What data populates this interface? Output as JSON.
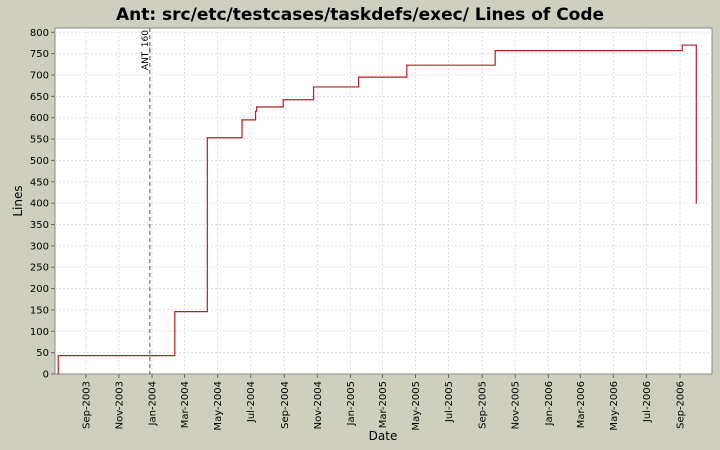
{
  "chart_data": {
    "type": "line",
    "title": "Ant: src/etc/testcases/taskdefs/exec/ Lines of Code",
    "xlabel": "Date",
    "ylabel": "Lines",
    "x_axis": "date",
    "xlim": [
      "2003-07-06",
      "2006-10-30"
    ],
    "ylim": [
      0,
      810
    ],
    "y_ticks": [
      0,
      50,
      100,
      150,
      200,
      250,
      300,
      350,
      400,
      450,
      500,
      550,
      600,
      650,
      700,
      750,
      800
    ],
    "x_ticks": [
      {
        "date": "2003-09-01",
        "label": "Sep-2003"
      },
      {
        "date": "2003-11-01",
        "label": "Nov-2003"
      },
      {
        "date": "2004-01-01",
        "label": "Jan-2004"
      },
      {
        "date": "2004-03-01",
        "label": "Mar-2004"
      },
      {
        "date": "2004-05-01",
        "label": "May-2004"
      },
      {
        "date": "2004-07-01",
        "label": "Jul-2004"
      },
      {
        "date": "2004-09-01",
        "label": "Sep-2004"
      },
      {
        "date": "2004-11-01",
        "label": "Nov-2004"
      },
      {
        "date": "2005-01-01",
        "label": "Jan-2005"
      },
      {
        "date": "2005-03-01",
        "label": "Mar-2005"
      },
      {
        "date": "2005-05-01",
        "label": "May-2005"
      },
      {
        "date": "2005-07-01",
        "label": "Jul-2005"
      },
      {
        "date": "2005-09-01",
        "label": "Sep-2005"
      },
      {
        "date": "2005-11-01",
        "label": "Nov-2005"
      },
      {
        "date": "2006-01-01",
        "label": "Jan-2006"
      },
      {
        "date": "2006-03-01",
        "label": "Mar-2006"
      },
      {
        "date": "2006-05-01",
        "label": "May-2006"
      },
      {
        "date": "2006-07-01",
        "label": "Jul-2006"
      },
      {
        "date": "2006-09-01",
        "label": "Sep-2006"
      }
    ],
    "grid": true,
    "series": [
      {
        "name": "",
        "color": "#b22222",
        "step": true,
        "points": [
          {
            "x": "2003-07-12",
            "y": 0
          },
          {
            "x": "2003-07-12",
            "y": 43
          },
          {
            "x": "2004-02-12",
            "y": 146
          },
          {
            "x": "2004-04-12",
            "y": 553
          },
          {
            "x": "2004-06-15",
            "y": 595
          },
          {
            "x": "2004-07-10",
            "y": 615
          },
          {
            "x": "2004-07-12",
            "y": 625
          },
          {
            "x": "2004-08-30",
            "y": 642
          },
          {
            "x": "2004-10-25",
            "y": 672
          },
          {
            "x": "2005-01-16",
            "y": 695
          },
          {
            "x": "2005-04-15",
            "y": 723
          },
          {
            "x": "2005-09-25",
            "y": 757
          },
          {
            "x": "2006-09-05",
            "y": 770
          },
          {
            "x": "2006-10-01",
            "y": 770
          },
          {
            "x": "2006-10-01",
            "y": 400
          }
        ]
      }
    ],
    "markers": [
      {
        "date": "2003-12-28",
        "label": "ANT_160"
      }
    ]
  }
}
